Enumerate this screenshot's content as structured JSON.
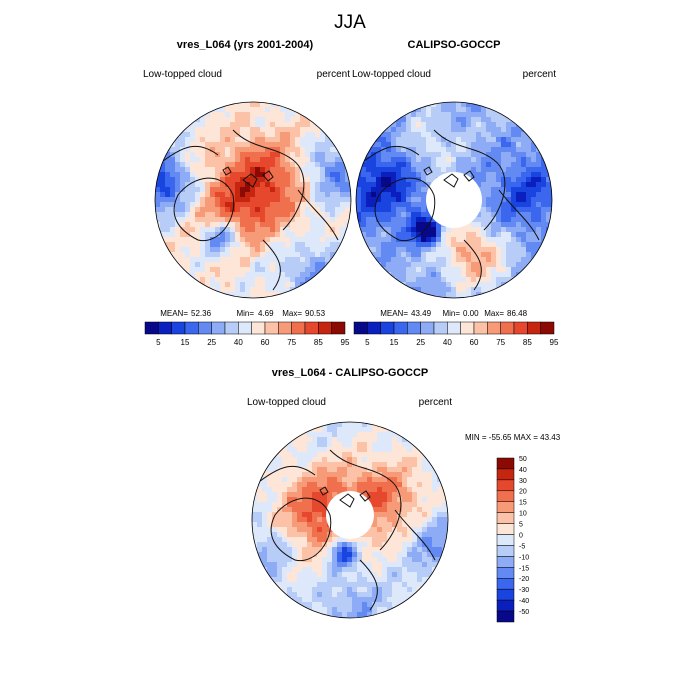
{
  "chart_data": [
    {
      "type": "heatmap",
      "projection": "north polar stereographic",
      "title": "vres_L064 (yrs 2001-2004)",
      "left_label": "Low-topped cloud",
      "right_label": "percent",
      "stats": {
        "mean": "52.36",
        "min": "4.69",
        "max": "90.53"
      },
      "colorbar": {
        "levels": [
          5,
          10,
          15,
          20,
          25,
          30,
          40,
          50,
          60,
          70,
          75,
          80,
          85,
          90,
          95
        ],
        "tick_labels": [
          "5",
          "15",
          "25",
          "40",
          "60",
          "75",
          "85",
          "95"
        ]
      }
    },
    {
      "type": "heatmap",
      "projection": "north polar stereographic",
      "title": "CALIPSO-GOCCP",
      "left_label": "Low-topped cloud",
      "right_label": "percent",
      "stats": {
        "mean": "43.49",
        "min": "0.00",
        "max": "86.48"
      },
      "colorbar": {
        "levels": [
          5,
          10,
          15,
          20,
          25,
          30,
          40,
          50,
          60,
          70,
          75,
          80,
          85,
          90,
          95
        ],
        "tick_labels": [
          "5",
          "15",
          "25",
          "40",
          "60",
          "75",
          "85",
          "95"
        ]
      }
    },
    {
      "type": "heatmap",
      "projection": "north polar stereographic",
      "title": "vres_L064 - CALIPSO-GOCCP",
      "left_label": "Low-topped cloud",
      "right_label": "percent",
      "stats_text": "MIN = -55.65 MAX =  43.43",
      "colorbar": {
        "orientation": "vertical",
        "levels": [
          -50,
          -40,
          -30,
          -20,
          -15,
          -10,
          -5,
          0,
          5,
          10,
          15,
          20,
          30,
          40,
          50
        ],
        "tick_labels": [
          "50",
          "40",
          "30",
          "20",
          "15",
          "10",
          "5",
          "0",
          "-5",
          "-10",
          "-15",
          "-20",
          "-30",
          "-40",
          "-50"
        ]
      }
    }
  ],
  "figure": {
    "main_title": "JJA",
    "stat_labels": {
      "mean": "MEAN=",
      "min": "Min=",
      "max": "Max="
    }
  },
  "colors": {
    "palette": [
      "#08088a",
      "#0b1fbf",
      "#1a44e0",
      "#3b66ee",
      "#6389f2",
      "#8eacf5",
      "#b7cdf8",
      "#dde8fb",
      "#fde5d8",
      "#fbc2a8",
      "#f79a78",
      "#f06f4d",
      "#e5482c",
      "#c62510",
      "#8c0a04"
    ],
    "coast": "#111111"
  }
}
